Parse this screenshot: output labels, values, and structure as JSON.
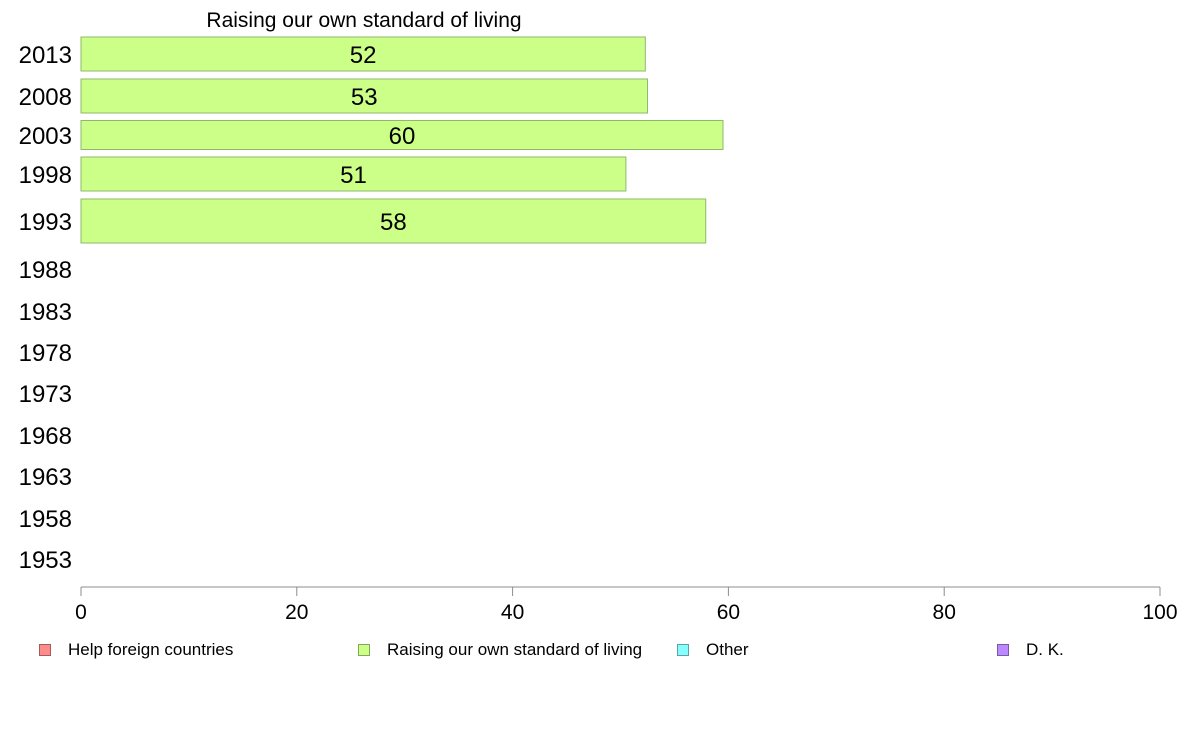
{
  "chart_data": {
    "type": "bar",
    "orientation": "horizontal",
    "title": "Raising our own standard of living",
    "categories": [
      "2013",
      "2008",
      "2003",
      "1998",
      "1993",
      "1988",
      "1983",
      "1978",
      "1973",
      "1968",
      "1963",
      "1958",
      "1953"
    ],
    "series": [
      {
        "name": "Raising our own standard of living",
        "color": "#ccff88",
        "values": [
          52.3,
          52.5,
          59.5,
          50.5,
          57.9,
          null,
          null,
          null,
          null,
          null,
          null,
          null,
          null
        ],
        "labels": [
          "52",
          "53",
          "60",
          "51",
          "58",
          "",
          "",
          "",
          "",
          "",
          "",
          "",
          ""
        ]
      }
    ],
    "xlim": [
      0,
      100
    ],
    "xticks": [
      "0",
      "20",
      "40",
      "60",
      "80",
      "100"
    ],
    "grid": false,
    "legend_position": "bottom",
    "legend": [
      {
        "label": "Help foreign countries",
        "color": "#ff8c8c"
      },
      {
        "label": "Raising our own standard of living",
        "color": "#ccff88"
      },
      {
        "label": "Other",
        "color": "#88ffff"
      },
      {
        "label": "D. K.",
        "color": "#bb88ff"
      }
    ]
  }
}
